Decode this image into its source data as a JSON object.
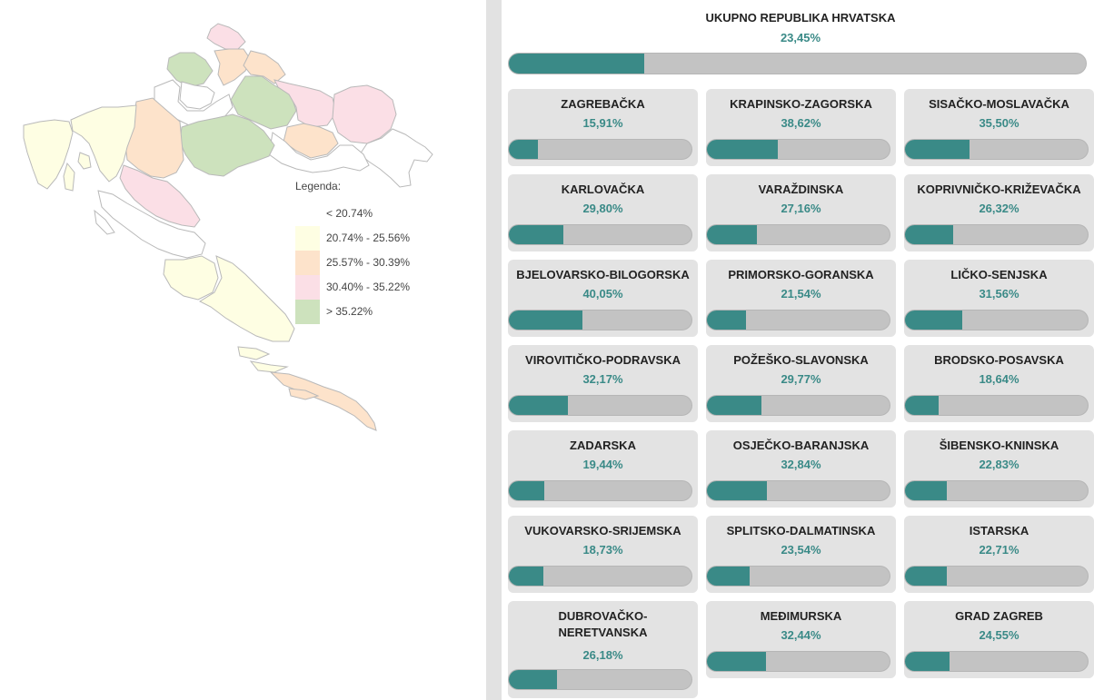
{
  "colors": {
    "accent": "#3a8a87",
    "bar_track": "#c3c3c3",
    "card_bg": "#e3e3e3",
    "legend_lt_20_74": "#ffffff",
    "legend_20_74_25_56": "#fefee3",
    "legend_25_57_30_39": "#fde3cb",
    "legend_30_40_35_22": "#fbdfe6",
    "legend_gt_35_22": "#cde2bd"
  },
  "legend": {
    "title": "Legenda:",
    "items": [
      {
        "label": "< 20.74%",
        "color": "#ffffff"
      },
      {
        "label": "20.74% - 25.56%",
        "color": "#fefee3"
      },
      {
        "label": "25.57% - 30.39%",
        "color": "#fde3cb"
      },
      {
        "label": "30.40% - 35.22%",
        "color": "#fbdfe6"
      },
      {
        "label": "> 35.22%",
        "color": "#cde2bd"
      }
    ]
  },
  "total": {
    "name": "UKUPNO REPUBLIKA HRVATSKA",
    "percent_label": "23,45%",
    "value": 23.45
  },
  "counties": [
    {
      "name": "ZAGREBAČKA",
      "percent_label": "15,91%",
      "value": 15.91
    },
    {
      "name": "KRAPINSKO-ZAGORSKA",
      "percent_label": "38,62%",
      "value": 38.62
    },
    {
      "name": "SISAČKO-MOSLAVAČKA",
      "percent_label": "35,50%",
      "value": 35.5
    },
    {
      "name": "KARLOVAČKA",
      "percent_label": "29,80%",
      "value": 29.8
    },
    {
      "name": "VARAŽDINSKA",
      "percent_label": "27,16%",
      "value": 27.16
    },
    {
      "name": "KOPRIVNIČKO-KRIŽEVAČKA",
      "percent_label": "26,32%",
      "value": 26.32
    },
    {
      "name": "BJELOVARSKO-BILOGORSKA",
      "percent_label": "40,05%",
      "value": 40.05
    },
    {
      "name": "PRIMORSKO-GORANSKA",
      "percent_label": "21,54%",
      "value": 21.54
    },
    {
      "name": "LIČKO-SENJSKA",
      "percent_label": "31,56%",
      "value": 31.56
    },
    {
      "name": "VIROVITIČKO-PODRAVSKA",
      "percent_label": "32,17%",
      "value": 32.17
    },
    {
      "name": "POŽEŠKO-SLAVONSKA",
      "percent_label": "29,77%",
      "value": 29.77
    },
    {
      "name": "BRODSKO-POSAVSKA",
      "percent_label": "18,64%",
      "value": 18.64
    },
    {
      "name": "ZADARSKA",
      "percent_label": "19,44%",
      "value": 19.44
    },
    {
      "name": "OSJEČKO-BARANJSKA",
      "percent_label": "32,84%",
      "value": 32.84
    },
    {
      "name": "ŠIBENSKO-KNINSKA",
      "percent_label": "22,83%",
      "value": 22.83
    },
    {
      "name": "VUKOVARSKO-SRIJEMSKA",
      "percent_label": "18,73%",
      "value": 18.73
    },
    {
      "name": "SPLITSKO-DALMATINSKA",
      "percent_label": "23,54%",
      "value": 23.54
    },
    {
      "name": "ISTARSKA",
      "percent_label": "22,71%",
      "value": 22.71
    },
    {
      "name": "DUBROVAČKO-NERETVANSKA",
      "percent_label": "26,18%",
      "value": 26.18
    },
    {
      "name": "MEĐIMURSKA",
      "percent_label": "32,44%",
      "value": 32.44
    },
    {
      "name": "GRAD ZAGREB",
      "percent_label": "24,55%",
      "value": 24.55
    }
  ]
}
